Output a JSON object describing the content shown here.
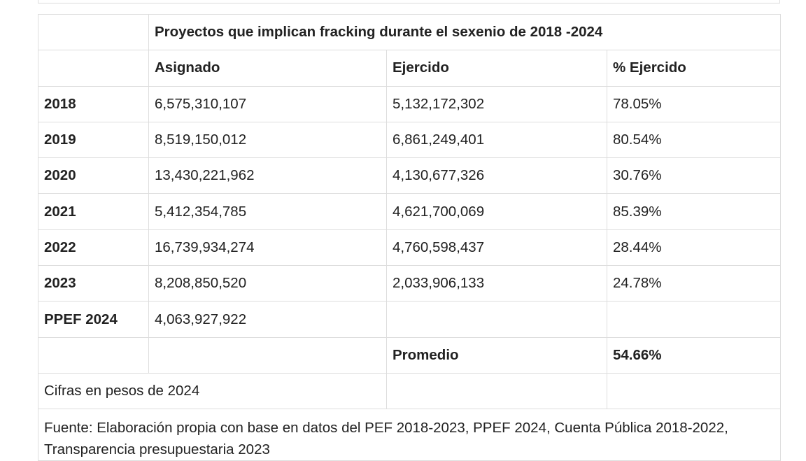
{
  "table": {
    "title": "Proyectos que implican fracking durante el sexenio de 2018 -2024",
    "header": [
      "Asignado",
      "Ejercido",
      "% Ejercido"
    ],
    "rows": [
      [
        "2018",
        "6,575,310,107",
        "5,132,172,302",
        "78.05%"
      ],
      [
        "2019",
        "8,519,150,012",
        "6,861,249,401",
        "80.54%"
      ],
      [
        "2020",
        "13,430,221,962",
        "4,130,677,326",
        "30.76%"
      ],
      [
        "2021",
        "5,412,354,785",
        "4,621,700,069",
        "85.39%"
      ],
      [
        "2022",
        "16,739,934,274",
        "4,760,598,437",
        "28.44%"
      ],
      [
        "2023",
        "8,208,850,520",
        "2,033,906,133",
        "24.78%"
      ],
      [
        "PPEF 2024",
        "4,063,927,922"
      ]
    ],
    "average": {
      "label": "Promedio",
      "value": "54.66%"
    },
    "note": "Cifras en pesos de 2024",
    "source": "Fuente: Elaboración propia con base en datos del PEF 2018-2023, PPEF 2024, Cuenta Pública 2018-2022, Transparencia presupuestaria 2023"
  }
}
